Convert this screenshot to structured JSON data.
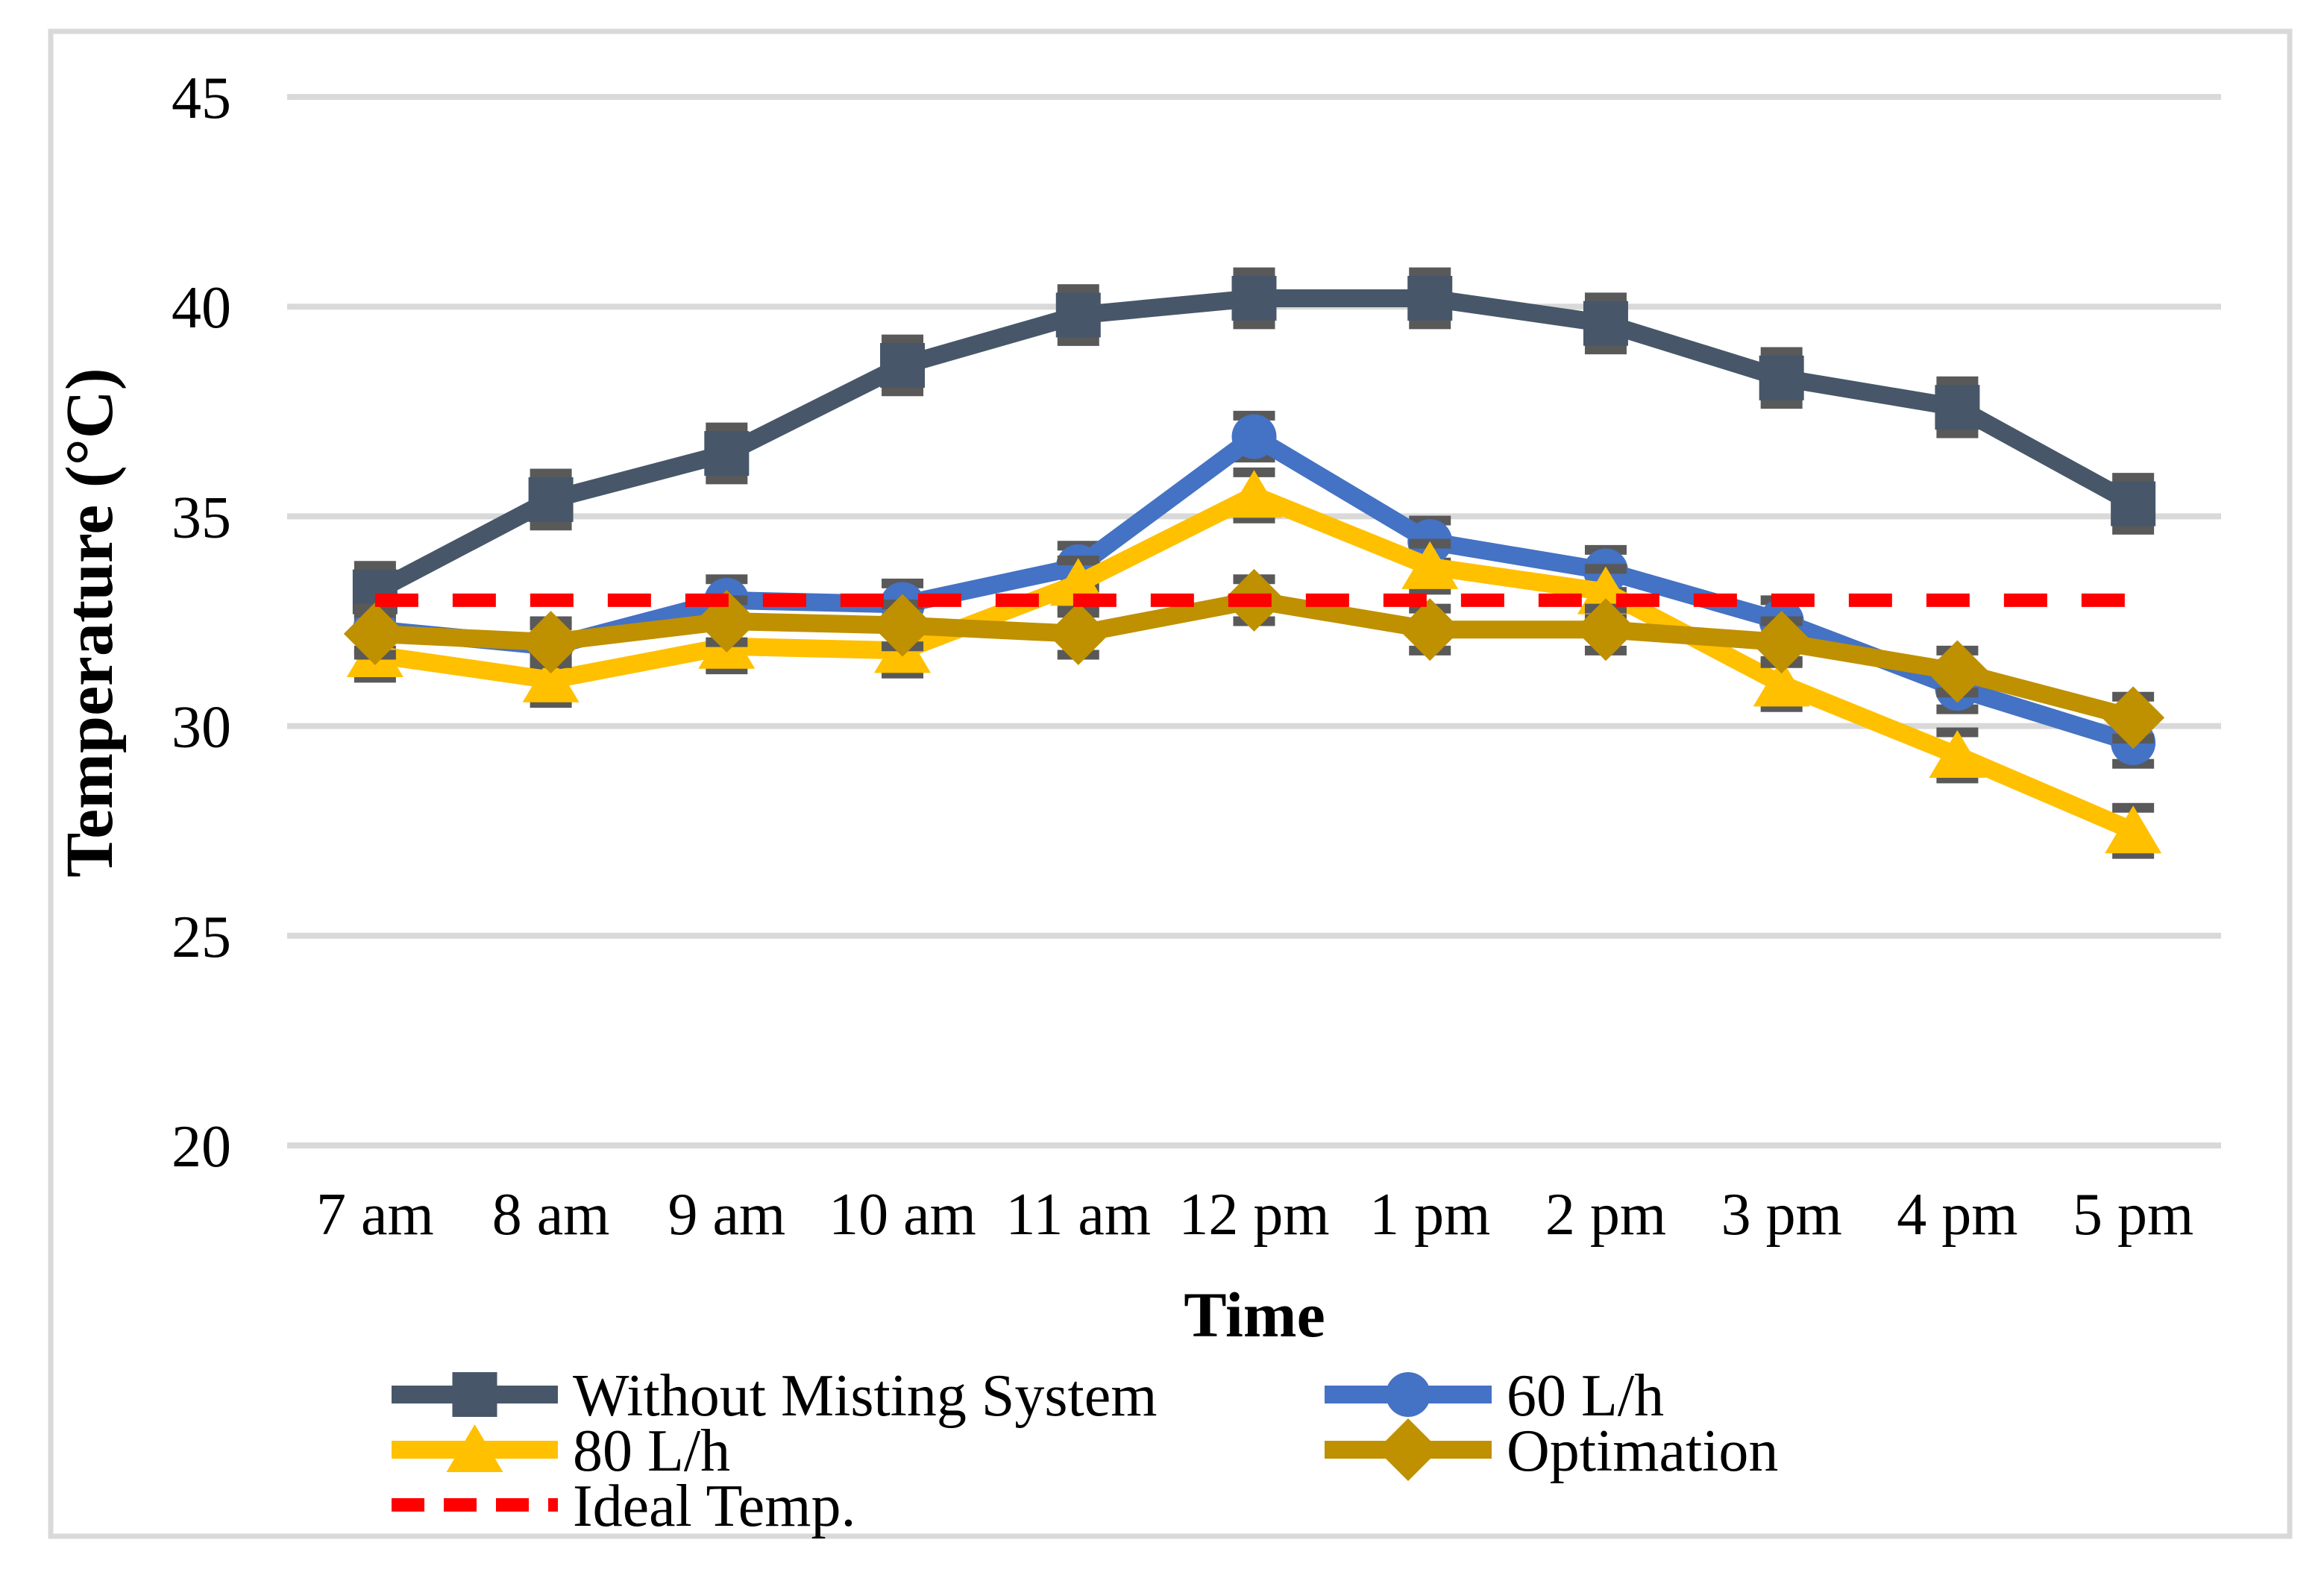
{
  "chart_data": {
    "type": "line",
    "title": "",
    "xlabel": "Time",
    "ylabel": "Temperature (°C)",
    "categories": [
      "7 am",
      "8 am",
      "9 am",
      "10 am",
      "11 am",
      "12 pm",
      "1 pm",
      "2 pm",
      "3 pm",
      "4 pm",
      "5 pm"
    ],
    "ylim": [
      20,
      45
    ],
    "yticks": [
      20,
      25,
      30,
      35,
      40,
      45
    ],
    "grid": true,
    "legend_position": "bottom",
    "series": [
      {
        "name": "Without Misting System",
        "color": "#475769",
        "marker": "square",
        "line": "solid",
        "error_bar": 0.62,
        "values": [
          33.2,
          35.4,
          36.5,
          38.6,
          39.8,
          40.2,
          40.2,
          39.6,
          38.3,
          37.6,
          35.3
        ]
      },
      {
        "name": "60 L/h",
        "color": "#4472C4",
        "marker": "circle",
        "line": "solid",
        "error_bar": 0.5,
        "values": [
          32.3,
          31.9,
          33.0,
          32.9,
          33.8,
          36.9,
          34.4,
          33.7,
          32.5,
          30.9,
          29.6
        ]
      },
      {
        "name": "80 L/h",
        "color": "#FFC000",
        "marker": "triangle",
        "line": "solid",
        "error_bar": 0.55,
        "values": [
          31.7,
          31.1,
          31.9,
          31.8,
          33.4,
          35.5,
          33.8,
          33.2,
          31.0,
          29.3,
          27.5
        ]
      },
      {
        "name": "Optimation",
        "color": "#BF9000",
        "marker": "diamond",
        "line": "solid",
        "error_bar": 0.5,
        "values": [
          32.2,
          32.0,
          32.5,
          32.4,
          32.2,
          33.0,
          32.3,
          32.3,
          32.0,
          31.3,
          30.2
        ]
      },
      {
        "name": "Ideal Temp.",
        "color": "#FF0000",
        "marker": "none",
        "line": "dashed",
        "error_bar": 0,
        "values": [
          33,
          33,
          33,
          33,
          33,
          33,
          33,
          33,
          33,
          33,
          33
        ]
      }
    ],
    "ideal_temperature_value": 33,
    "legend_rows": [
      [
        0,
        1
      ],
      [
        2,
        3
      ],
      [
        4
      ]
    ],
    "colors": {
      "gridline": "#D9D9D9",
      "chart_border": "#D9D9D9",
      "error_bar": "#595959",
      "text": "#000000",
      "background": "#FFFFFF"
    }
  }
}
